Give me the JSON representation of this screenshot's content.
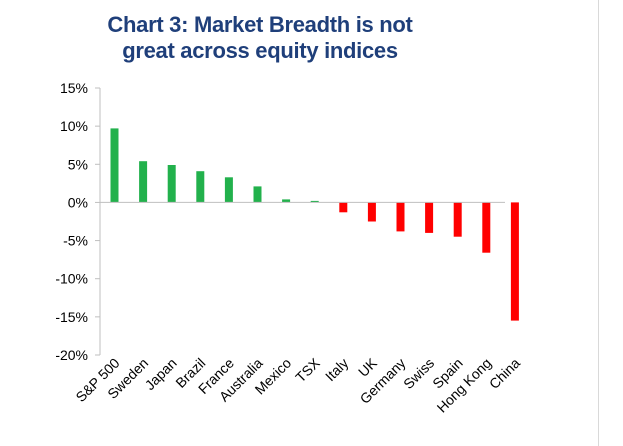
{
  "chart_data": {
    "type": "bar",
    "title_line1": "Chart 3: Market Breadth is not",
    "title_line2": "great across equity indices",
    "categories": [
      "S&P 500",
      "Sweden",
      "Japan",
      "Brazil",
      "France",
      "Australia",
      "Mexico",
      "TSX",
      "Italy",
      "UK",
      "Germany",
      "Swiss",
      "Spain",
      "Hong Kong",
      "China"
    ],
    "values": [
      9.7,
      5.4,
      4.9,
      4.1,
      3.3,
      2.1,
      0.4,
      0.2,
      -1.3,
      -2.5,
      -3.8,
      -4.0,
      -4.5,
      -6.6,
      -15.5
    ],
    "ylim": [
      -20,
      15
    ],
    "yticks": [
      15,
      10,
      5,
      0,
      -5,
      -10,
      -15,
      -20
    ],
    "ytick_labels": [
      "15%",
      "10%",
      "5%",
      "0%",
      "-5%",
      "-10%",
      "-15%",
      "-20%"
    ],
    "positive_color": "#22b14c",
    "negative_color": "#ff0000",
    "grid": false,
    "legend": "none"
  }
}
